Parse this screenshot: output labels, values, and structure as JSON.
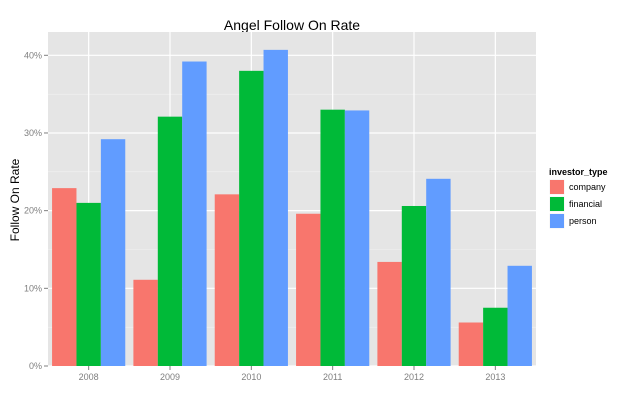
{
  "chart_data": {
    "type": "bar",
    "title": "Angel Follow On Rate",
    "xlabel": "",
    "ylabel": "Follow On Rate",
    "categories": [
      "2008",
      "2009",
      "2010",
      "2011",
      "2012",
      "2013"
    ],
    "ylim": [
      0,
      0.43
    ],
    "yticks": [
      0,
      0.1,
      0.2,
      0.3,
      0.4
    ],
    "ytick_labels": [
      "0%",
      "10%",
      "20%",
      "30%",
      "40%"
    ],
    "grid": true,
    "legend": {
      "title": "investor_type",
      "position": "right"
    },
    "series": [
      {
        "name": "company",
        "color": "#F8766D",
        "values": [
          0.229,
          0.111,
          0.221,
          0.196,
          0.134,
          0.056
        ]
      },
      {
        "name": "financial",
        "color": "#00BA38",
        "values": [
          0.21,
          0.321,
          0.38,
          0.33,
          0.206,
          0.075
        ]
      },
      {
        "name": "person",
        "color": "#619CFF",
        "values": [
          0.292,
          0.392,
          0.407,
          0.329,
          0.241,
          0.129
        ]
      }
    ]
  }
}
